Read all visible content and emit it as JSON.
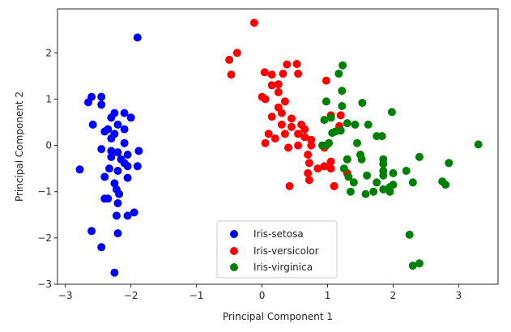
{
  "chart_data": {
    "type": "scatter",
    "title": "",
    "xlabel": "Principal Component 1",
    "ylabel": "Principal Component 2",
    "xlim": [
      -3.12,
      3.6
    ],
    "ylim": [
      -3.0,
      2.95
    ],
    "xticks": [
      -3,
      -2,
      -1,
      0,
      1,
      2,
      3
    ],
    "yticks": [
      -3,
      -2,
      -1,
      0,
      1,
      2
    ],
    "tick_labels": {
      "x": [
        "−3",
        "−2",
        "−1",
        "0",
        "1",
        "2",
        "3"
      ],
      "y": [
        "−3",
        "−2",
        "−1",
        "0",
        "1",
        "2"
      ]
    },
    "grid": false,
    "legend_position": "bottom-center",
    "series": [
      {
        "name": "Iris-setosa",
        "color": "#0000ff",
        "points": [
          [
            -1.9,
            2.33
          ],
          [
            -2.65,
            0.93
          ],
          [
            -2.45,
            1.05
          ],
          [
            -2.45,
            0.88
          ],
          [
            -2.25,
            0.7
          ],
          [
            -2.1,
            0.7
          ],
          [
            -2.0,
            0.6
          ],
          [
            -2.3,
            0.6
          ],
          [
            -2.58,
            0.45
          ],
          [
            -2.2,
            0.45
          ],
          [
            -2.35,
            0.35
          ],
          [
            -2.1,
            0.35
          ],
          [
            -2.4,
            0.3
          ],
          [
            -2.25,
            0.25
          ],
          [
            -2.3,
            0.15
          ],
          [
            -2.1,
            0.05
          ],
          [
            -2.45,
            -0.08
          ],
          [
            -2.3,
            -0.12
          ],
          [
            -2.2,
            -0.15
          ],
          [
            -1.88,
            -0.12
          ],
          [
            -2.05,
            -0.2
          ],
          [
            -2.3,
            -0.25
          ],
          [
            -2.15,
            -0.3
          ],
          [
            -2.1,
            -0.38
          ],
          [
            -2.33,
            -0.5
          ],
          [
            -2.05,
            -0.45
          ],
          [
            -1.9,
            -0.45
          ],
          [
            -2.2,
            -0.55
          ],
          [
            -2.4,
            -0.68
          ],
          [
            -2.78,
            -0.52
          ],
          [
            -2.05,
            -0.7
          ],
          [
            -2.25,
            -0.82
          ],
          [
            -2.22,
            -0.95
          ],
          [
            -2.18,
            -1.05
          ],
          [
            -2.4,
            -1.15
          ],
          [
            -2.35,
            -1.15
          ],
          [
            -2.2,
            -1.25
          ],
          [
            -1.95,
            -1.45
          ],
          [
            -2.22,
            -1.52
          ],
          [
            -2.05,
            -1.52
          ],
          [
            -2.6,
            -1.85
          ],
          [
            -2.2,
            -1.9
          ],
          [
            -2.45,
            -2.2
          ],
          [
            -2.25,
            -2.75
          ],
          [
            -2.6,
            1.05
          ]
        ]
      },
      {
        "name": "Iris-versicolor",
        "color": "#ff0000",
        "points": [
          [
            -0.12,
            2.65
          ],
          [
            -0.38,
            2.0
          ],
          [
            -0.5,
            1.85
          ],
          [
            -0.47,
            1.53
          ],
          [
            0.38,
            1.75
          ],
          [
            0.53,
            1.76
          ],
          [
            0.04,
            1.58
          ],
          [
            0.15,
            1.53
          ],
          [
            0.32,
            1.55
          ],
          [
            0.25,
            1.32
          ],
          [
            0.15,
            1.3
          ],
          [
            0.25,
            1.15
          ],
          [
            0.0,
            1.05
          ],
          [
            0.05,
            1.0
          ],
          [
            0.35,
            0.95
          ],
          [
            0.25,
            0.82
          ],
          [
            0.3,
            0.7
          ],
          [
            0.15,
            0.62
          ],
          [
            0.45,
            0.58
          ],
          [
            0.3,
            0.45
          ],
          [
            0.45,
            0.4
          ],
          [
            0.6,
            0.45
          ],
          [
            0.65,
            0.35
          ],
          [
            0.55,
            0.25
          ],
          [
            0.35,
            0.25
          ],
          [
            0.1,
            0.25
          ],
          [
            0.2,
            0.15
          ],
          [
            0.65,
            0.18
          ],
          [
            0.75,
            0.12
          ],
          [
            0.05,
            0.05
          ],
          [
            0.55,
            0.0
          ],
          [
            0.75,
            0.0
          ],
          [
            0.4,
            -0.05
          ],
          [
            0.7,
            -0.2
          ],
          [
            0.95,
            -0.05
          ],
          [
            1.05,
            -0.35
          ],
          [
            0.72,
            -0.38
          ],
          [
            0.95,
            -0.45
          ],
          [
            1.05,
            -0.5
          ],
          [
            0.85,
            -0.5
          ],
          [
            1.3,
            -0.3
          ],
          [
            0.7,
            -0.6
          ],
          [
            0.72,
            -0.75
          ],
          [
            1.3,
            -0.6
          ],
          [
            0.42,
            -0.88
          ],
          [
            1.1,
            -0.88
          ],
          [
            0.98,
            1.4
          ],
          [
            1.05,
            0.65
          ],
          [
            1.2,
            0.65
          ],
          [
            1.18,
            0.42
          ],
          [
            0.55,
            1.55
          ]
        ]
      },
      {
        "name": "Iris-virginica",
        "color": "#008000",
        "points": [
          [
            1.23,
            1.73
          ],
          [
            1.17,
            1.55
          ],
          [
            1.22,
            1.18
          ],
          [
            0.98,
            0.95
          ],
          [
            1.22,
            0.85
          ],
          [
            1.53,
            0.92
          ],
          [
            1.98,
            0.72
          ],
          [
            1.05,
            0.6
          ],
          [
            0.95,
            0.55
          ],
          [
            1.3,
            0.48
          ],
          [
            1.42,
            0.45
          ],
          [
            1.62,
            0.45
          ],
          [
            1.2,
            0.32
          ],
          [
            1.12,
            0.3
          ],
          [
            1.07,
            0.27
          ],
          [
            1.75,
            0.2
          ],
          [
            1.83,
            0.2
          ],
          [
            0.92,
            0.0
          ],
          [
            0.98,
            0.0
          ],
          [
            1.02,
            0.05
          ],
          [
            1.45,
            0.05
          ],
          [
            1.5,
            -0.2
          ],
          [
            1.3,
            -0.3
          ],
          [
            1.52,
            -0.3
          ],
          [
            1.85,
            -0.3
          ],
          [
            1.85,
            -0.4
          ],
          [
            2.4,
            -0.25
          ],
          [
            2.85,
            -0.38
          ],
          [
            3.3,
            0.02
          ],
          [
            1.25,
            -0.5
          ],
          [
            1.6,
            -0.65
          ],
          [
            1.85,
            -0.55
          ],
          [
            1.85,
            -0.65
          ],
          [
            2.0,
            -0.6
          ],
          [
            2.2,
            -0.55
          ],
          [
            1.32,
            -0.68
          ],
          [
            1.75,
            -0.8
          ],
          [
            1.4,
            -0.8
          ],
          [
            1.95,
            -0.9
          ],
          [
            2.0,
            -0.85
          ],
          [
            1.85,
            -0.95
          ],
          [
            2.3,
            -0.8
          ],
          [
            2.75,
            -0.78
          ],
          [
            2.8,
            -0.85
          ],
          [
            1.35,
            -1.0
          ],
          [
            1.7,
            -1.0
          ],
          [
            1.95,
            -1.0
          ],
          [
            1.58,
            -1.05
          ],
          [
            2.25,
            -1.93
          ],
          [
            2.3,
            -2.6
          ],
          [
            2.4,
            -2.55
          ]
        ]
      }
    ]
  }
}
